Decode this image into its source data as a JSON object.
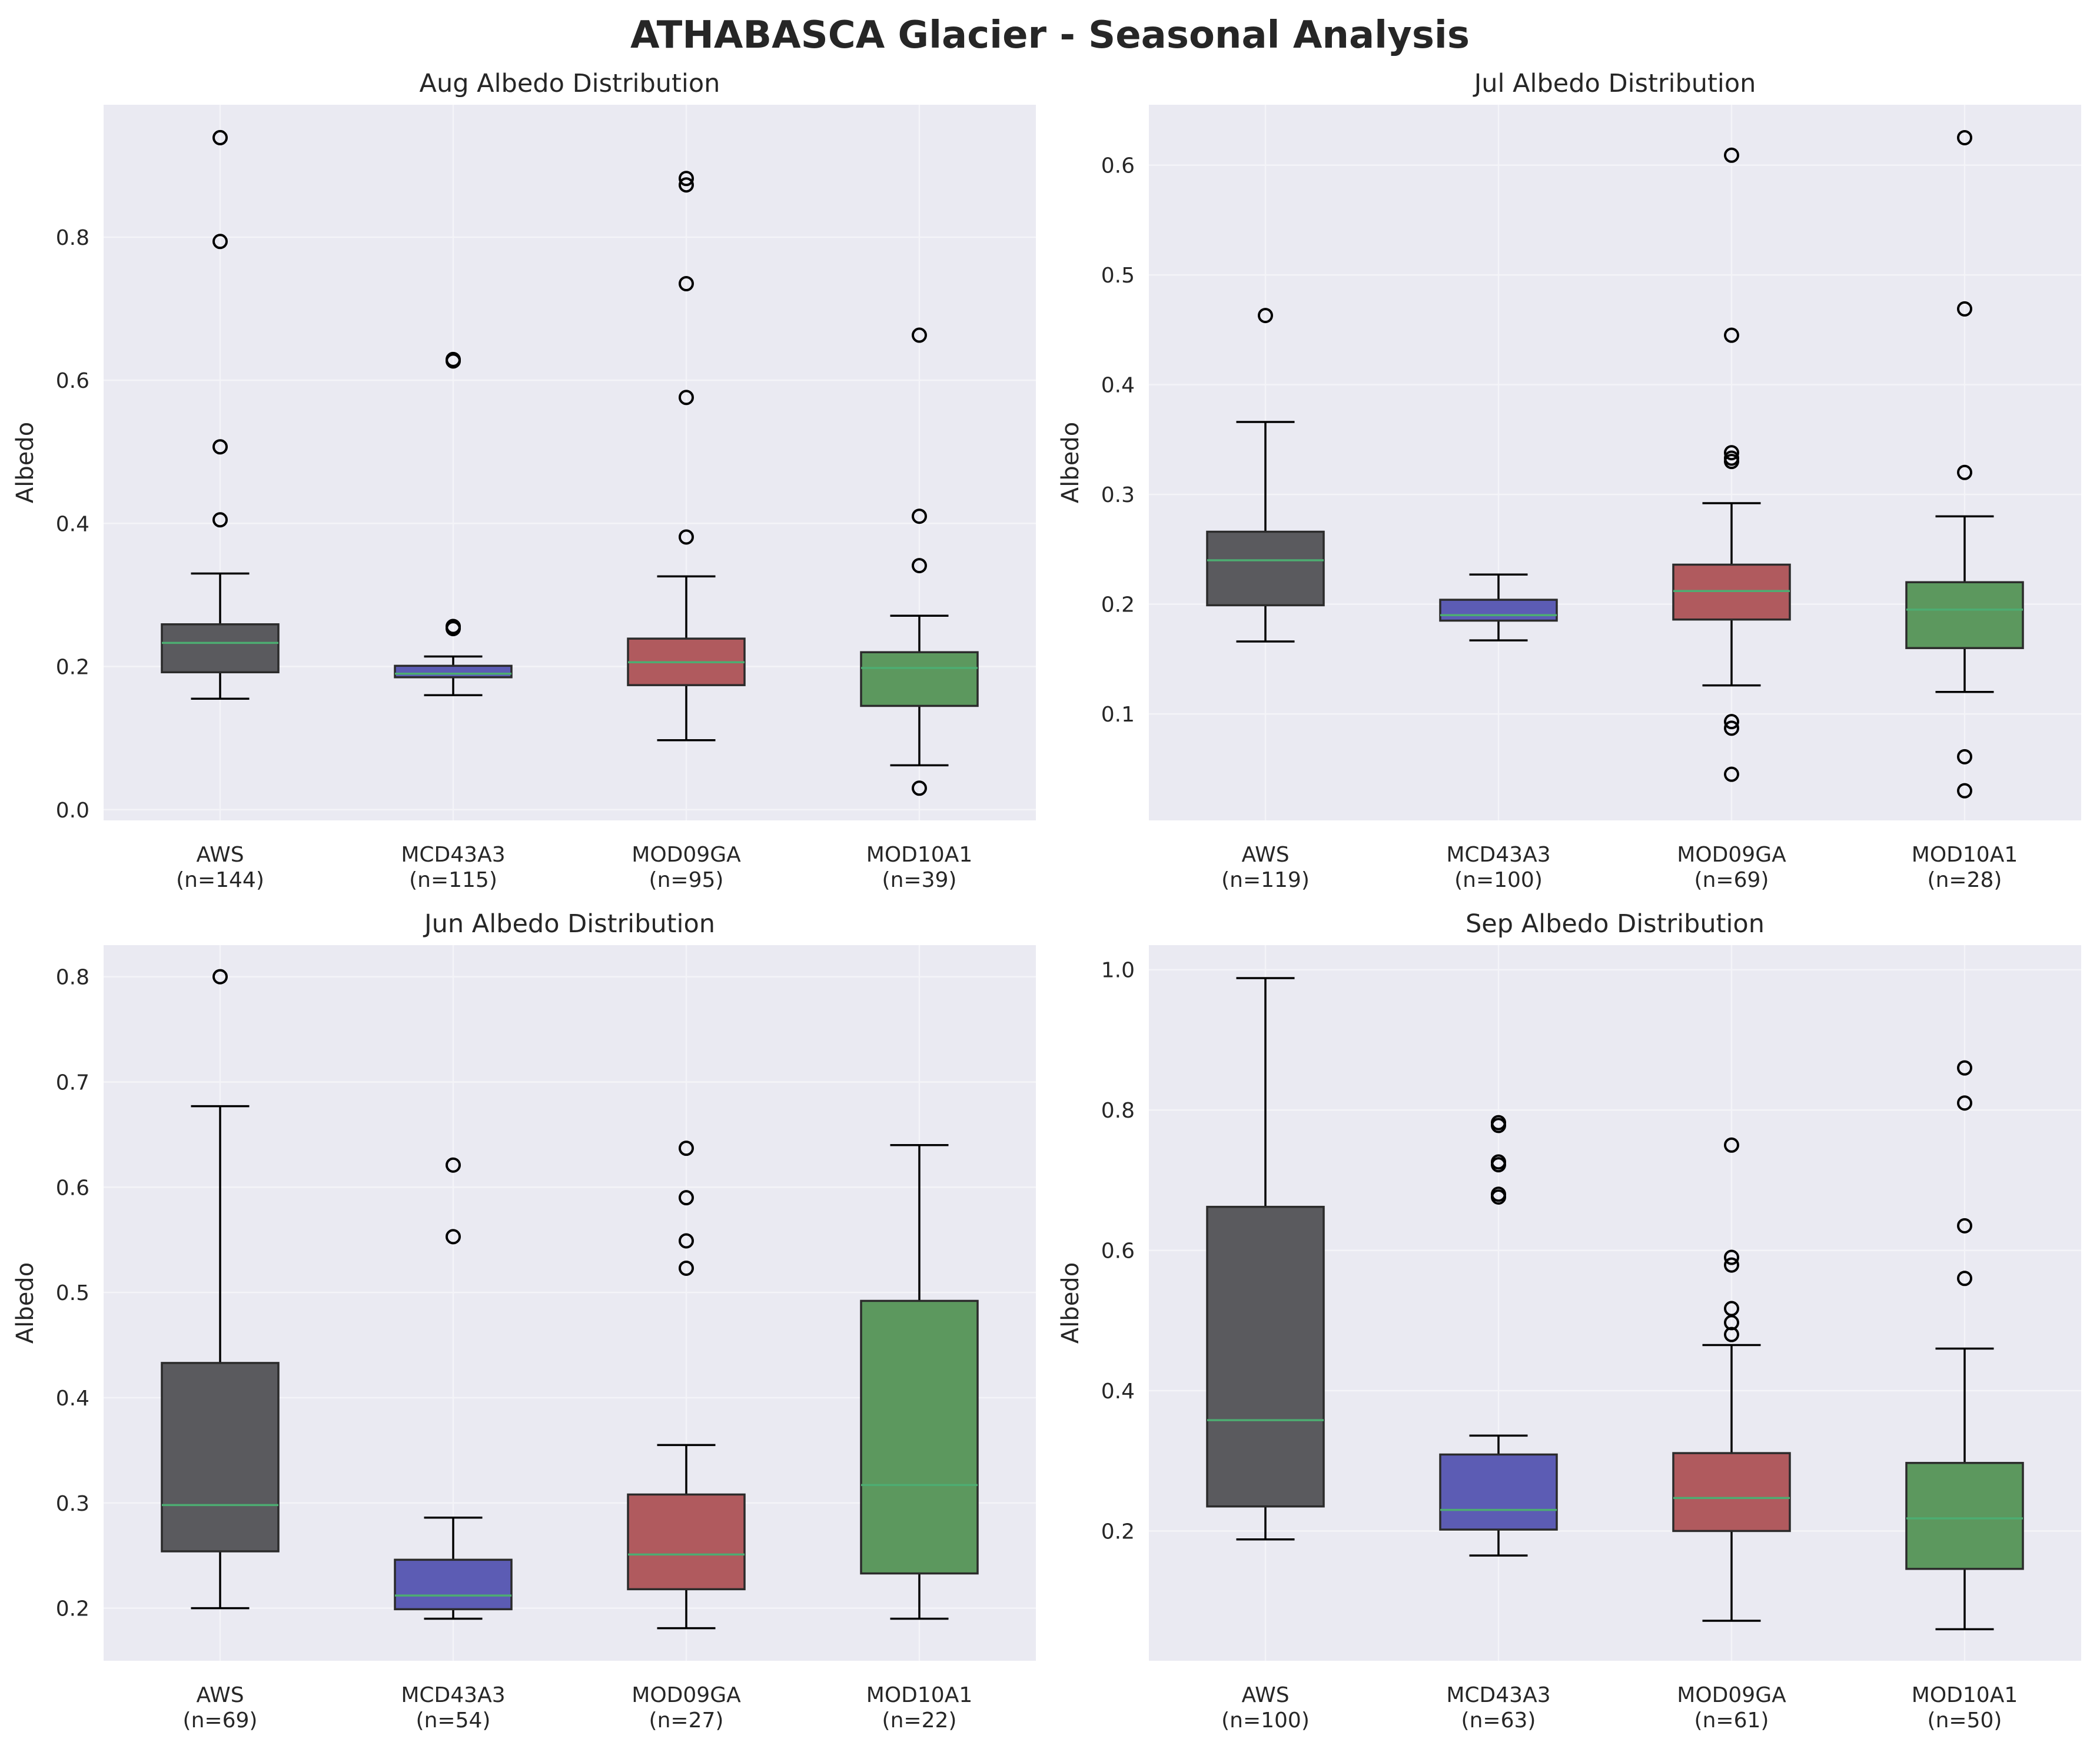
{
  "figure": {
    "title": "ATHABASCA Glacier - Seasonal Analysis",
    "colors": {
      "background": "#ffffff",
      "plot_background": "#eaeaf2",
      "grid": "#f4f4f8",
      "median": "#4dad72",
      "AWS": "#5a5a5e",
      "MCD43A3": "#5c5cb4",
      "MOD09GA": "#b05a5e",
      "MOD10A1": "#5c985e"
    }
  },
  "chart_data": [
    {
      "type": "box",
      "title": "Aug Albedo Distribution",
      "ylabel": "Albedo",
      "xlabel": "",
      "ylim": [
        -0.015,
        0.985
      ],
      "yticks": [
        0.0,
        0.2,
        0.4,
        0.6,
        0.8
      ],
      "grid": true,
      "categories": [
        "AWS",
        "MCD43A3",
        "MOD09GA",
        "MOD10A1"
      ],
      "counts": [
        "(n=144)",
        "(n=115)",
        "(n=95)",
        "(n=39)"
      ],
      "boxes": [
        {
          "name": "AWS",
          "whisker_low": 0.155,
          "q1": 0.192,
          "median": 0.233,
          "q3": 0.259,
          "whisker_high": 0.33,
          "outliers": [
            0.405,
            0.507,
            0.794,
            0.939
          ]
        },
        {
          "name": "MCD43A3",
          "whisker_low": 0.16,
          "q1": 0.185,
          "median": 0.19,
          "q3": 0.201,
          "whisker_high": 0.214,
          "outliers": [
            0.253,
            0.256,
            0.627,
            0.629
          ]
        },
        {
          "name": "MOD09GA",
          "whisker_low": 0.097,
          "q1": 0.174,
          "median": 0.206,
          "q3": 0.239,
          "whisker_high": 0.326,
          "outliers": [
            0.381,
            0.576,
            0.735,
            0.873,
            0.882
          ]
        },
        {
          "name": "MOD10A1",
          "whisker_low": 0.062,
          "q1": 0.145,
          "median": 0.198,
          "q3": 0.22,
          "whisker_high": 0.271,
          "outliers": [
            0.03,
            0.341,
            0.41,
            0.663
          ]
        }
      ]
    },
    {
      "type": "box",
      "title": "Jul Albedo Distribution",
      "ylabel": "Albedo",
      "xlabel": "",
      "ylim": [
        0.003,
        0.655
      ],
      "yticks": [
        0.1,
        0.2,
        0.3,
        0.4,
        0.5,
        0.6
      ],
      "grid": true,
      "categories": [
        "AWS",
        "MCD43A3",
        "MOD09GA",
        "MOD10A1"
      ],
      "counts": [
        "(n=119)",
        "(n=100)",
        "(n=69)",
        "(n=28)"
      ],
      "boxes": [
        {
          "name": "AWS",
          "whisker_low": 0.166,
          "q1": 0.199,
          "median": 0.24,
          "q3": 0.266,
          "whisker_high": 0.366,
          "outliers": [
            0.463
          ]
        },
        {
          "name": "MCD43A3",
          "whisker_low": 0.167,
          "q1": 0.185,
          "median": 0.19,
          "q3": 0.204,
          "whisker_high": 0.227,
          "outliers": []
        },
        {
          "name": "MOD09GA",
          "whisker_low": 0.126,
          "q1": 0.186,
          "median": 0.212,
          "q3": 0.236,
          "whisker_high": 0.292,
          "outliers": [
            0.045,
            0.087,
            0.093,
            0.33,
            0.333,
            0.338,
            0.445,
            0.609
          ]
        },
        {
          "name": "MOD10A1",
          "whisker_low": 0.12,
          "q1": 0.16,
          "median": 0.195,
          "q3": 0.22,
          "whisker_high": 0.28,
          "outliers": [
            0.03,
            0.061,
            0.32,
            0.469,
            0.625
          ]
        }
      ]
    },
    {
      "type": "box",
      "title": "Jun Albedo Distribution",
      "ylabel": "Albedo",
      "xlabel": "",
      "ylim": [
        0.15,
        0.83
      ],
      "yticks": [
        0.2,
        0.3,
        0.4,
        0.5,
        0.6,
        0.7,
        0.8
      ],
      "grid": true,
      "categories": [
        "AWS",
        "MCD43A3",
        "MOD09GA",
        "MOD10A1"
      ],
      "counts": [
        "(n=69)",
        "(n=54)",
        "(n=27)",
        "(n=22)"
      ],
      "boxes": [
        {
          "name": "AWS",
          "whisker_low": 0.2,
          "q1": 0.254,
          "median": 0.298,
          "q3": 0.433,
          "whisker_high": 0.677,
          "outliers": [
            0.8
          ]
        },
        {
          "name": "MCD43A3",
          "whisker_low": 0.19,
          "q1": 0.199,
          "median": 0.212,
          "q3": 0.246,
          "whisker_high": 0.286,
          "outliers": [
            0.553,
            0.621
          ]
        },
        {
          "name": "MOD09GA",
          "whisker_low": 0.181,
          "q1": 0.218,
          "median": 0.251,
          "q3": 0.308,
          "whisker_high": 0.355,
          "outliers": [
            0.523,
            0.549,
            0.59,
            0.637
          ]
        },
        {
          "name": "MOD10A1",
          "whisker_low": 0.19,
          "q1": 0.233,
          "median": 0.317,
          "q3": 0.492,
          "whisker_high": 0.64,
          "outliers": []
        }
      ]
    },
    {
      "type": "box",
      "title": "Sep Albedo Distribution",
      "ylabel": "Albedo",
      "xlabel": "",
      "ylim": [
        0.015,
        1.035
      ],
      "yticks": [
        0.2,
        0.4,
        0.6,
        0.8,
        1.0
      ],
      "grid": true,
      "categories": [
        "AWS",
        "MCD43A3",
        "MOD09GA",
        "MOD10A1"
      ],
      "counts": [
        "(n=100)",
        "(n=63)",
        "(n=61)",
        "(n=50)"
      ],
      "boxes": [
        {
          "name": "AWS",
          "whisker_low": 0.188,
          "q1": 0.235,
          "median": 0.358,
          "q3": 0.662,
          "whisker_high": 0.988,
          "outliers": []
        },
        {
          "name": "MCD43A3",
          "whisker_low": 0.165,
          "q1": 0.202,
          "median": 0.23,
          "q3": 0.309,
          "whisker_high": 0.336,
          "outliers": [
            0.676,
            0.68,
            0.722,
            0.726,
            0.778,
            0.782
          ]
        },
        {
          "name": "MOD09GA",
          "whisker_low": 0.072,
          "q1": 0.2,
          "median": 0.247,
          "q3": 0.311,
          "whisker_high": 0.465,
          "outliers": [
            0.48,
            0.497,
            0.517,
            0.579,
            0.59,
            0.75
          ]
        },
        {
          "name": "MOD10A1",
          "whisker_low": 0.06,
          "q1": 0.146,
          "median": 0.218,
          "q3": 0.297,
          "whisker_high": 0.46,
          "outliers": [
            0.56,
            0.635,
            0.81,
            0.86
          ]
        }
      ]
    }
  ]
}
